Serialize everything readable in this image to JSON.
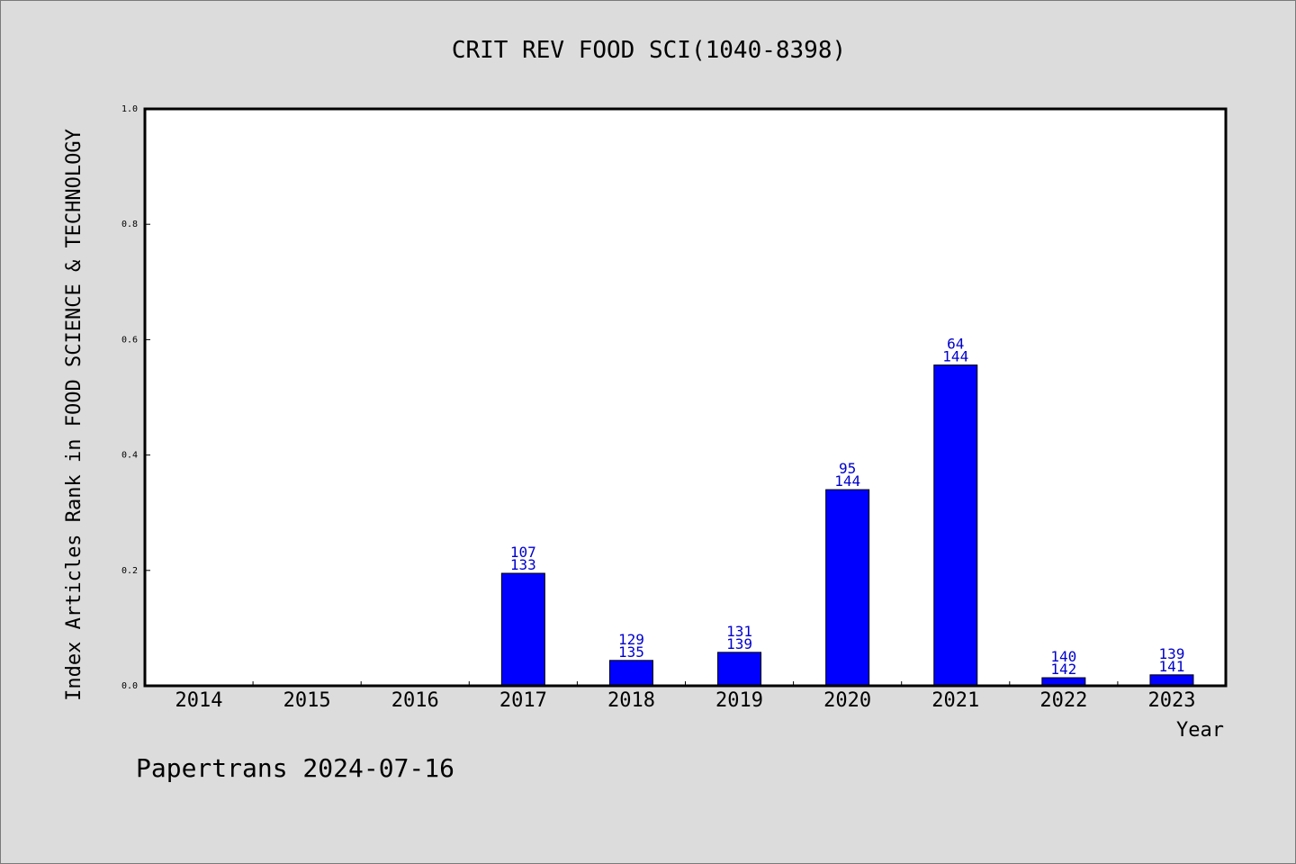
{
  "chart_data": {
    "type": "bar",
    "title": "CRIT REV FOOD SCI(1040-8398)",
    "ylabel": "Index Articles Rank in FOOD SCIENCE & TECHNOLOGY",
    "xlabel": "Year",
    "categories": [
      "2014",
      "2015",
      "2016",
      "2017",
      "2018",
      "2019",
      "2020",
      "2021",
      "2022",
      "2023"
    ],
    "values": [
      0,
      0,
      0,
      0.195,
      0.044,
      0.058,
      0.34,
      0.556,
      0.014,
      0.019
    ],
    "labels_top": [
      "",
      "",
      "",
      "107",
      "129",
      "131",
      "95",
      "64",
      "140",
      "139"
    ],
    "labels_bottom": [
      "",
      "",
      "",
      "133",
      "135",
      "139",
      "144",
      "144",
      "142",
      "141"
    ],
    "ylim": [
      0,
      1.0
    ],
    "yticks": [
      "0.0",
      "0.2",
      "0.4",
      "0.6",
      "0.8",
      "1.0"
    ],
    "grid": false,
    "bar_color": "#0000ff",
    "label_color": "#0000cc"
  },
  "footer": "Papertrans 2024-07-16"
}
